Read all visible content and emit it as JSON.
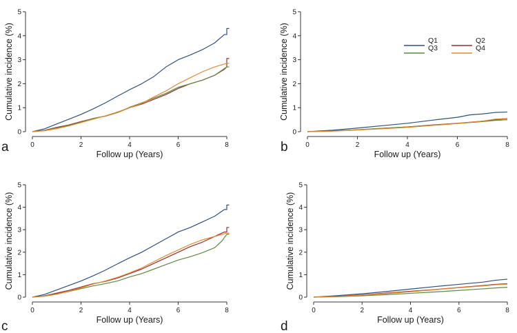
{
  "chart_data": [
    {
      "type": "line",
      "panel_label": "a",
      "xlabel": "Follow up (Years)",
      "ylabel": "Cumulative incidence (%)",
      "xlim": [
        0,
        8
      ],
      "ylim": [
        0,
        5
      ],
      "xticks": [
        "0",
        "2",
        "4",
        "6",
        "8"
      ],
      "yticks": [
        "0",
        "1",
        "2",
        "3",
        "4",
        "5"
      ],
      "grid": false,
      "series": [
        {
          "name": "Q1",
          "color": "#2c4f80",
          "x": [
            0,
            0.5,
            1,
            1.5,
            2,
            2.5,
            3,
            3.5,
            4,
            4.5,
            5,
            5.5,
            6,
            6.5,
            7,
            7.5,
            7.9,
            8.0,
            8.0,
            8.1
          ],
          "y": [
            0,
            0.12,
            0.32,
            0.52,
            0.72,
            0.95,
            1.2,
            1.48,
            1.75,
            2.0,
            2.3,
            2.7,
            3.0,
            3.2,
            3.42,
            3.7,
            4.05,
            4.05,
            4.3,
            4.3
          ]
        },
        {
          "name": "Q2",
          "color": "#9b2d2d",
          "x": [
            0,
            0.5,
            1,
            1.5,
            2,
            2.5,
            3,
            3.5,
            4,
            4.5,
            5,
            5.5,
            6,
            6.5,
            7,
            7.5,
            7.9,
            8.0,
            8.0,
            8.1
          ],
          "y": [
            0,
            0.06,
            0.18,
            0.28,
            0.42,
            0.55,
            0.65,
            0.8,
            1.0,
            1.15,
            1.35,
            1.55,
            1.8,
            2.0,
            2.15,
            2.35,
            2.6,
            2.7,
            3.05,
            3.05
          ]
        },
        {
          "name": "Q3",
          "color": "#5c8a3c",
          "x": [
            0,
            0.5,
            1,
            1.5,
            2,
            2.5,
            3,
            3.5,
            4,
            4.5,
            5,
            5.5,
            6,
            6.5,
            7,
            7.5,
            8.0,
            8.1
          ],
          "y": [
            0,
            0.05,
            0.16,
            0.26,
            0.4,
            0.55,
            0.65,
            0.8,
            1.02,
            1.2,
            1.4,
            1.6,
            1.85,
            2.0,
            2.15,
            2.35,
            2.7,
            2.7
          ]
        },
        {
          "name": "Q4",
          "color": "#e8862a",
          "x": [
            0,
            0.5,
            1,
            1.5,
            2,
            2.5,
            3,
            3.5,
            4,
            4.5,
            5,
            5.5,
            6,
            6.5,
            7,
            7.5,
            8.0,
            8.1
          ],
          "y": [
            0,
            0.04,
            0.13,
            0.24,
            0.38,
            0.52,
            0.66,
            0.82,
            1.0,
            1.18,
            1.45,
            1.7,
            2.0,
            2.25,
            2.5,
            2.7,
            2.85,
            2.85
          ]
        }
      ]
    },
    {
      "type": "line",
      "panel_label": "b",
      "xlabel": "Follow up (Years)",
      "ylabel": "Cumulative incidence (%)",
      "xlim": [
        0,
        8
      ],
      "ylim": [
        0,
        5
      ],
      "xticks": [
        "0",
        "2",
        "4",
        "6",
        "8"
      ],
      "yticks": [
        "0",
        "1",
        "2",
        "3",
        "4",
        "5"
      ],
      "grid": false,
      "legend": {
        "placement": "top-right",
        "entries": [
          "Q1",
          "Q2",
          "Q3",
          "Q4"
        ]
      },
      "series": [
        {
          "name": "Q1",
          "color": "#2c4f80",
          "x": [
            0,
            1,
            2,
            3,
            4,
            5,
            6,
            6.5,
            7,
            7.5,
            8.0
          ],
          "y": [
            0,
            0.06,
            0.15,
            0.25,
            0.35,
            0.48,
            0.6,
            0.7,
            0.74,
            0.8,
            0.82
          ]
        },
        {
          "name": "Q2",
          "color": "#9b2d2d",
          "x": [
            0,
            1,
            2,
            3,
            4,
            5,
            6,
            7,
            7.5,
            8.0
          ],
          "y": [
            0,
            0.03,
            0.08,
            0.14,
            0.2,
            0.28,
            0.35,
            0.44,
            0.5,
            0.55
          ]
        },
        {
          "name": "Q3",
          "color": "#5c8a3c",
          "x": [
            0,
            1,
            2,
            3,
            4,
            5,
            6,
            7,
            7.5,
            8.0
          ],
          "y": [
            0,
            0.03,
            0.08,
            0.14,
            0.2,
            0.27,
            0.34,
            0.42,
            0.47,
            0.5
          ]
        },
        {
          "name": "Q4",
          "color": "#e8862a",
          "x": [
            0,
            1,
            2,
            3,
            4,
            5,
            6,
            7,
            7.5,
            8.0
          ],
          "y": [
            0,
            0.02,
            0.07,
            0.12,
            0.18,
            0.26,
            0.34,
            0.44,
            0.52,
            0.55
          ]
        }
      ]
    },
    {
      "type": "line",
      "panel_label": "c",
      "xlabel": "Follow up (Years)",
      "ylabel": "Cumulative incidence (%)",
      "xlim": [
        0,
        8
      ],
      "ylim": [
        0,
        5
      ],
      "xticks": [
        "0",
        "2",
        "4",
        "6",
        "8"
      ],
      "yticks": [
        "0",
        "1",
        "2",
        "3",
        "4",
        "5"
      ],
      "grid": false,
      "series": [
        {
          "name": "Q1",
          "color": "#2c4f80",
          "x": [
            0,
            0.5,
            1,
            1.5,
            2,
            2.5,
            3,
            3.5,
            4,
            4.5,
            5,
            5.5,
            6,
            6.5,
            7,
            7.5,
            7.9,
            8.0,
            8.0,
            8.1
          ],
          "y": [
            0,
            0.12,
            0.32,
            0.52,
            0.72,
            0.95,
            1.2,
            1.48,
            1.75,
            2.0,
            2.3,
            2.6,
            2.9,
            3.1,
            3.35,
            3.6,
            3.9,
            3.9,
            4.1,
            4.1
          ]
        },
        {
          "name": "Q2",
          "color": "#9b2d2d",
          "x": [
            0,
            0.5,
            1,
            1.5,
            2,
            2.5,
            3,
            3.5,
            4,
            4.5,
            5,
            5.5,
            6,
            6.5,
            7,
            7.5,
            7.9,
            8.0,
            8.0,
            8.1
          ],
          "y": [
            0,
            0.06,
            0.18,
            0.3,
            0.45,
            0.6,
            0.7,
            0.85,
            1.05,
            1.25,
            1.5,
            1.75,
            2.0,
            2.25,
            2.45,
            2.7,
            2.9,
            2.9,
            3.1,
            3.1
          ]
        },
        {
          "name": "Q3",
          "color": "#5c8a3c",
          "x": [
            0,
            0.5,
            1,
            1.5,
            2,
            2.5,
            3,
            3.5,
            4,
            4.5,
            5,
            5.5,
            6,
            6.5,
            7,
            7.5,
            7.8,
            8.0,
            8.1
          ],
          "y": [
            0,
            0.05,
            0.15,
            0.25,
            0.38,
            0.5,
            0.6,
            0.72,
            0.9,
            1.05,
            1.25,
            1.45,
            1.65,
            1.8,
            1.98,
            2.2,
            2.5,
            2.8,
            2.8
          ]
        },
        {
          "name": "Q4",
          "color": "#e8862a",
          "x": [
            0,
            0.5,
            1,
            1.5,
            2,
            2.5,
            3,
            3.5,
            4,
            4.5,
            5,
            5.5,
            6,
            6.5,
            7,
            7.5,
            8.0,
            8.1
          ],
          "y": [
            0,
            0.04,
            0.13,
            0.26,
            0.42,
            0.58,
            0.72,
            0.88,
            1.08,
            1.3,
            1.58,
            1.85,
            2.1,
            2.35,
            2.55,
            2.7,
            2.85,
            2.85
          ]
        }
      ]
    },
    {
      "type": "line",
      "panel_label": "d",
      "xlabel": "Follow up (Years)",
      "ylabel": "Cumulative incidence (%)",
      "xlim": [
        0,
        8
      ],
      "ylim": [
        0,
        5
      ],
      "xticks": [
        "0",
        "2",
        "4",
        "6",
        "8"
      ],
      "yticks": [
        "0",
        "1",
        "2",
        "3",
        "4",
        "5"
      ],
      "grid": false,
      "series": [
        {
          "name": "Q1",
          "color": "#2c4f80",
          "x": [
            0,
            1,
            2,
            3,
            4,
            5,
            6,
            6.5,
            7,
            7.5,
            8.0
          ],
          "y": [
            0,
            0.07,
            0.15,
            0.25,
            0.36,
            0.47,
            0.57,
            0.62,
            0.67,
            0.75,
            0.8
          ]
        },
        {
          "name": "Q2",
          "color": "#9b2d2d",
          "x": [
            0,
            1,
            2,
            3,
            4,
            5,
            6,
            7,
            7.5,
            8.0
          ],
          "y": [
            0,
            0.04,
            0.1,
            0.18,
            0.26,
            0.34,
            0.43,
            0.52,
            0.57,
            0.6
          ]
        },
        {
          "name": "Q3",
          "color": "#5c8a3c",
          "x": [
            0,
            1,
            2,
            3,
            4,
            5,
            6,
            7,
            7.5,
            8.0
          ],
          "y": [
            0,
            0.02,
            0.06,
            0.11,
            0.17,
            0.23,
            0.3,
            0.37,
            0.41,
            0.44
          ]
        },
        {
          "name": "Q4",
          "color": "#e8862a",
          "x": [
            0,
            1,
            2,
            3,
            4,
            5,
            6,
            7,
            7.5,
            8.0
          ],
          "y": [
            0,
            0.03,
            0.09,
            0.16,
            0.24,
            0.33,
            0.42,
            0.5,
            0.55,
            0.58
          ]
        }
      ]
    }
  ]
}
